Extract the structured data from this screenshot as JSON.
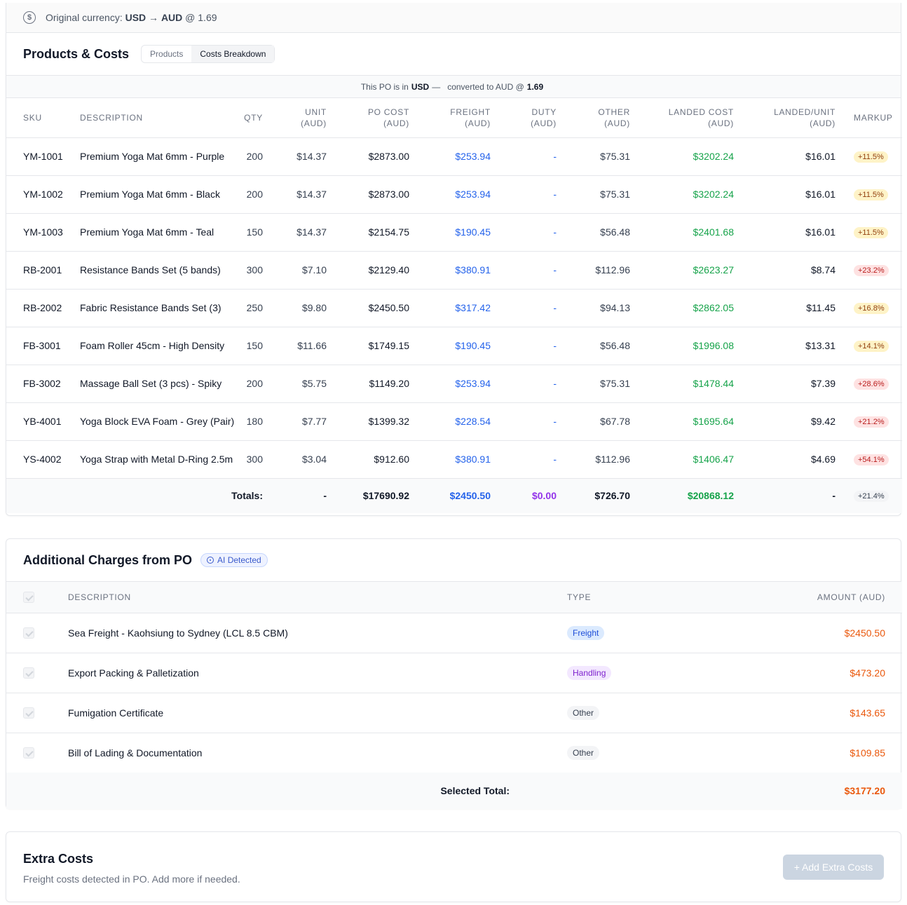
{
  "currency_bar": {
    "prefix": "Original currency:",
    "from": "USD",
    "arrow": "→",
    "to": "AUD",
    "rate_text": "@ 1.69"
  },
  "products": {
    "title": "Products & Costs",
    "tabs": [
      "Products",
      "Costs Breakdown"
    ],
    "active_tab": "Costs Breakdown",
    "conversion_note": {
      "part1": "This PO is in",
      "currency": "USD",
      "part2": "—   converted to AUD @",
      "rate": "1.69"
    },
    "columns": {
      "sku": "SKU",
      "description": "DESCRIPTION",
      "qty": "QTY",
      "unit_1": "UNIT",
      "unit_2": "(AUD)",
      "po_1": "PO COST",
      "po_2": "(AUD)",
      "freight_1": "FREIGHT",
      "freight_2": "(AUD)",
      "duty_1": "DUTY",
      "duty_2": "(AUD)",
      "other_1": "OTHER",
      "other_2": "(AUD)",
      "landed_1": "LANDED COST",
      "landed_2": "(AUD)",
      "lu_1": "LANDED/UNIT",
      "lu_2": "(AUD)",
      "markup": "MARKUP"
    },
    "rows": [
      {
        "sku": "YM-1001",
        "description": "Premium Yoga Mat 6mm - Purple",
        "qty": "200",
        "unit": "$14.37",
        "po_cost": "$2873.00",
        "freight": "$253.94",
        "duty": "-",
        "other": "$75.31",
        "landed": "$3202.24",
        "landed_unit": "$16.01",
        "markup": "+11.5%",
        "markup_level": "y"
      },
      {
        "sku": "YM-1002",
        "description": "Premium Yoga Mat 6mm - Black",
        "qty": "200",
        "unit": "$14.37",
        "po_cost": "$2873.00",
        "freight": "$253.94",
        "duty": "-",
        "other": "$75.31",
        "landed": "$3202.24",
        "landed_unit": "$16.01",
        "markup": "+11.5%",
        "markup_level": "y"
      },
      {
        "sku": "YM-1003",
        "description": "Premium Yoga Mat 6mm - Teal",
        "qty": "150",
        "unit": "$14.37",
        "po_cost": "$2154.75",
        "freight": "$190.45",
        "duty": "-",
        "other": "$56.48",
        "landed": "$2401.68",
        "landed_unit": "$16.01",
        "markup": "+11.5%",
        "markup_level": "y"
      },
      {
        "sku": "RB-2001",
        "description": "Resistance Bands Set (5 bands)",
        "qty": "300",
        "unit": "$7.10",
        "po_cost": "$2129.40",
        "freight": "$380.91",
        "duty": "-",
        "other": "$112.96",
        "landed": "$2623.27",
        "landed_unit": "$8.74",
        "markup": "+23.2%",
        "markup_level": "r"
      },
      {
        "sku": "RB-2002",
        "description": "Fabric Resistance Bands Set (3)",
        "qty": "250",
        "unit": "$9.80",
        "po_cost": "$2450.50",
        "freight": "$317.42",
        "duty": "-",
        "other": "$94.13",
        "landed": "$2862.05",
        "landed_unit": "$11.45",
        "markup": "+16.8%",
        "markup_level": "y"
      },
      {
        "sku": "FB-3001",
        "description": "Foam Roller 45cm - High Density",
        "qty": "150",
        "unit": "$11.66",
        "po_cost": "$1749.15",
        "freight": "$190.45",
        "duty": "-",
        "other": "$56.48",
        "landed": "$1996.08",
        "landed_unit": "$13.31",
        "markup": "+14.1%",
        "markup_level": "y"
      },
      {
        "sku": "FB-3002",
        "description": "Massage Ball Set (3 pcs) - Spiky",
        "qty": "200",
        "unit": "$5.75",
        "po_cost": "$1149.20",
        "freight": "$253.94",
        "duty": "-",
        "other": "$75.31",
        "landed": "$1478.44",
        "landed_unit": "$7.39",
        "markup": "+28.6%",
        "markup_level": "r"
      },
      {
        "sku": "YB-4001",
        "description": "Yoga Block EVA Foam - Grey (Pair)",
        "qty": "180",
        "unit": "$7.77",
        "po_cost": "$1399.32",
        "freight": "$228.54",
        "duty": "-",
        "other": "$67.78",
        "landed": "$1695.64",
        "landed_unit": "$9.42",
        "markup": "+21.2%",
        "markup_level": "r"
      },
      {
        "sku": "YS-4002",
        "description": "Yoga Strap with Metal D-Ring 2.5m",
        "qty": "300",
        "unit": "$3.04",
        "po_cost": "$912.60",
        "freight": "$380.91",
        "duty": "-",
        "other": "$112.96",
        "landed": "$1406.47",
        "landed_unit": "$4.69",
        "markup": "+54.1%",
        "markup_level": "r"
      }
    ],
    "totals": {
      "label": "Totals:",
      "unit": "-",
      "po_cost": "$17690.92",
      "freight": "$2450.50",
      "duty": "$0.00",
      "other": "$726.70",
      "landed": "$20868.12",
      "landed_unit": "-",
      "markup": "+21.4%"
    }
  },
  "charges": {
    "title": "Additional Charges from PO",
    "badge": "AI Detected",
    "columns": {
      "description": "DESCRIPTION",
      "type": "TYPE",
      "amount": "AMOUNT (AUD)"
    },
    "rows": [
      {
        "description": "Sea Freight - Kaohsiung to Sydney (LCL 8.5 CBM)",
        "type": "Freight",
        "type_class": "tp-freight",
        "amount": "$2450.50"
      },
      {
        "description": "Export Packing & Palletization",
        "type": "Handling",
        "type_class": "tp-handling",
        "amount": "$473.20"
      },
      {
        "description": "Fumigation Certificate",
        "type": "Other",
        "type_class": "tp-other",
        "amount": "$143.65"
      },
      {
        "description": "Bill of Lading & Documentation",
        "type": "Other",
        "type_class": "tp-other",
        "amount": "$109.85"
      }
    ],
    "selected_total_label": "Selected Total:",
    "selected_total": "$3177.20"
  },
  "extra_costs": {
    "title": "Extra Costs",
    "subtitle": "Freight costs detected in PO. Add more if needed.",
    "add_button": "+ Add Extra Costs"
  }
}
